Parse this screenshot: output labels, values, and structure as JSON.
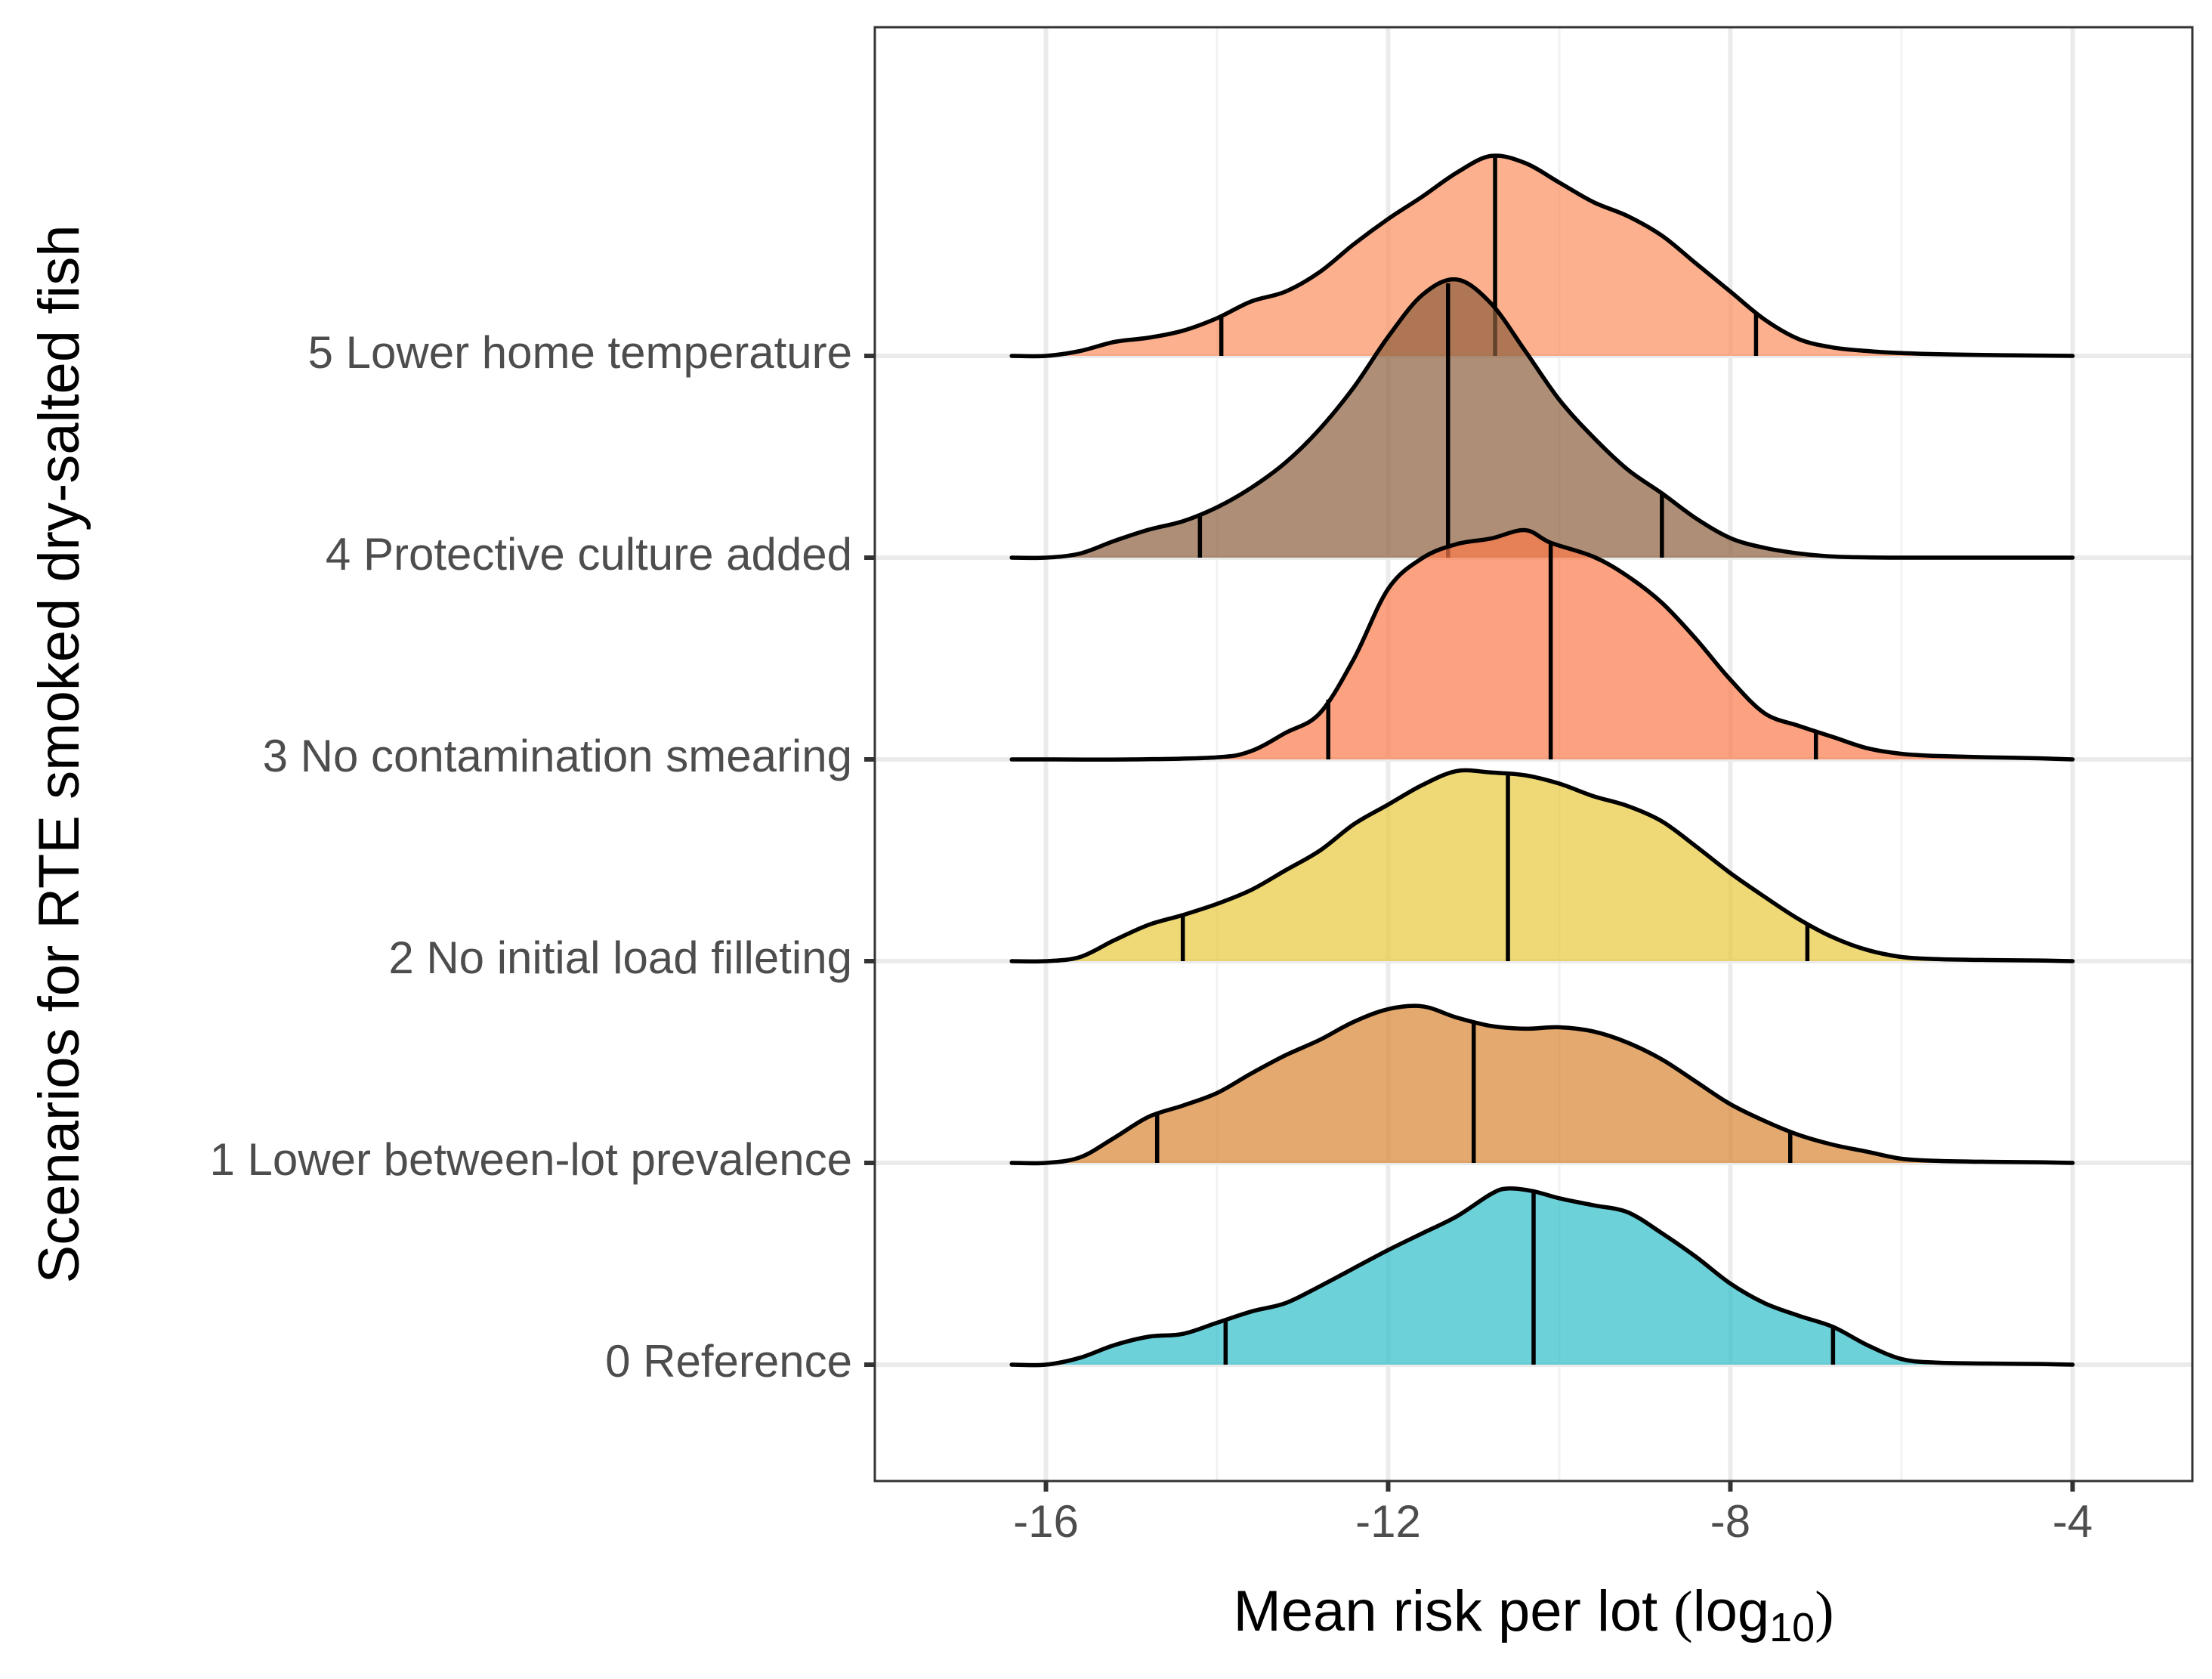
{
  "chart_data": {
    "type": "ridgeline",
    "xlabel": {
      "prefix": "Mean risk per lot ",
      "open": "(",
      "func": "log",
      "sub": "10",
      "close": ")"
    },
    "ylabel": "Scenarios for RTE smoked dry-salted fish",
    "xlim": [
      -18,
      -2.6
    ],
    "x_ticks": [
      -16,
      -12,
      -8,
      -4
    ],
    "x_tick_labels": [
      "-16",
      "-12",
      "-8",
      "-4"
    ],
    "x_minor_ticks": [
      -18,
      -14,
      -10,
      -6
    ],
    "x_density_range": [
      -16.4,
      -4
    ],
    "grid": true,
    "series": [
      {
        "name": "0 Reference",
        "color": "#2EBEC7",
        "quantiles": [
          -13.9,
          -10.3,
          -6.8
        ],
        "density": [
          [
            -16.4,
            0.0
          ],
          [
            -16.0,
            0.0
          ],
          [
            -15.6,
            0.05
          ],
          [
            -15.2,
            0.14
          ],
          [
            -14.8,
            0.2
          ],
          [
            -14.4,
            0.22
          ],
          [
            -14.0,
            0.3
          ],
          [
            -13.6,
            0.38
          ],
          [
            -13.2,
            0.44
          ],
          [
            -12.8,
            0.56
          ],
          [
            -12.4,
            0.69
          ],
          [
            -12.0,
            0.82
          ],
          [
            -11.6,
            0.94
          ],
          [
            -11.2,
            1.06
          ],
          [
            -10.8,
            1.22
          ],
          [
            -10.6,
            1.26
          ],
          [
            -10.3,
            1.24
          ],
          [
            -10.0,
            1.19
          ],
          [
            -9.6,
            1.14
          ],
          [
            -9.2,
            1.09
          ],
          [
            -8.8,
            0.94
          ],
          [
            -8.4,
            0.77
          ],
          [
            -8.0,
            0.58
          ],
          [
            -7.6,
            0.44
          ],
          [
            -7.2,
            0.35
          ],
          [
            -6.8,
            0.27
          ],
          [
            -6.4,
            0.14
          ],
          [
            -6.0,
            0.04
          ],
          [
            -5.6,
            0.015
          ],
          [
            -5.0,
            0.008
          ],
          [
            -4.4,
            0.005
          ],
          [
            -4.0,
            0.0
          ]
        ]
      },
      {
        "name": "1 Lower between-lot prevalence",
        "color": "#D98530",
        "quantiles": [
          -14.7,
          -11.0,
          -7.3
        ],
        "density": [
          [
            -16.4,
            0.0
          ],
          [
            -16.0,
            0.0
          ],
          [
            -15.6,
            0.04
          ],
          [
            -15.2,
            0.18
          ],
          [
            -14.8,
            0.33
          ],
          [
            -14.4,
            0.41
          ],
          [
            -14.0,
            0.5
          ],
          [
            -13.6,
            0.64
          ],
          [
            -13.2,
            0.77
          ],
          [
            -12.8,
            0.88
          ],
          [
            -12.4,
            1.01
          ],
          [
            -12.0,
            1.1
          ],
          [
            -11.6,
            1.12
          ],
          [
            -11.2,
            1.04
          ],
          [
            -10.8,
            0.98
          ],
          [
            -10.4,
            0.96
          ],
          [
            -10.0,
            0.97
          ],
          [
            -9.6,
            0.94
          ],
          [
            -9.2,
            0.86
          ],
          [
            -8.8,
            0.74
          ],
          [
            -8.4,
            0.58
          ],
          [
            -8.0,
            0.42
          ],
          [
            -7.6,
            0.3
          ],
          [
            -7.2,
            0.2
          ],
          [
            -6.8,
            0.13
          ],
          [
            -6.4,
            0.08
          ],
          [
            -6.0,
            0.03
          ],
          [
            -5.6,
            0.015
          ],
          [
            -5.0,
            0.008
          ],
          [
            -4.4,
            0.005
          ],
          [
            -4.0,
            0.0
          ]
        ]
      },
      {
        "name": "2 No initial load filleting",
        "color": "#E8C93C",
        "quantiles": [
          -14.4,
          -10.6,
          -7.1
        ],
        "density": [
          [
            -16.4,
            0.0
          ],
          [
            -16.0,
            0.0
          ],
          [
            -15.6,
            0.03
          ],
          [
            -15.2,
            0.15
          ],
          [
            -14.8,
            0.26
          ],
          [
            -14.4,
            0.33
          ],
          [
            -14.0,
            0.41
          ],
          [
            -13.6,
            0.51
          ],
          [
            -13.2,
            0.65
          ],
          [
            -12.8,
            0.79
          ],
          [
            -12.4,
            0.98
          ],
          [
            -12.0,
            1.12
          ],
          [
            -11.6,
            1.26
          ],
          [
            -11.2,
            1.36
          ],
          [
            -10.8,
            1.35
          ],
          [
            -10.4,
            1.33
          ],
          [
            -10.0,
            1.27
          ],
          [
            -9.6,
            1.18
          ],
          [
            -9.2,
            1.11
          ],
          [
            -8.8,
            1.0
          ],
          [
            -8.4,
            0.82
          ],
          [
            -8.0,
            0.63
          ],
          [
            -7.6,
            0.46
          ],
          [
            -7.2,
            0.3
          ],
          [
            -6.8,
            0.17
          ],
          [
            -6.4,
            0.08
          ],
          [
            -6.0,
            0.03
          ],
          [
            -5.6,
            0.015
          ],
          [
            -5.0,
            0.008
          ],
          [
            -4.4,
            0.005
          ],
          [
            -4.0,
            0.0
          ]
        ]
      },
      {
        "name": "3 No contamination smearing",
        "color": "#FC7A4A",
        "quantiles": [
          -12.7,
          -10.1,
          -7.0
        ],
        "density": [
          [
            -16.4,
            0.0
          ],
          [
            -16.0,
            0.0
          ],
          [
            -15.0,
            0.0
          ],
          [
            -14.0,
            0.015
          ],
          [
            -13.6,
            0.06
          ],
          [
            -13.2,
            0.19
          ],
          [
            -12.8,
            0.33
          ],
          [
            -12.4,
            0.72
          ],
          [
            -12.0,
            1.22
          ],
          [
            -11.6,
            1.44
          ],
          [
            -11.2,
            1.54
          ],
          [
            -10.8,
            1.58
          ],
          [
            -10.4,
            1.64
          ],
          [
            -10.1,
            1.55
          ],
          [
            -9.6,
            1.45
          ],
          [
            -9.2,
            1.31
          ],
          [
            -8.8,
            1.12
          ],
          [
            -8.4,
            0.86
          ],
          [
            -8.0,
            0.57
          ],
          [
            -7.6,
            0.33
          ],
          [
            -7.2,
            0.24
          ],
          [
            -6.8,
            0.16
          ],
          [
            -6.4,
            0.08
          ],
          [
            -6.0,
            0.04
          ],
          [
            -5.6,
            0.025
          ],
          [
            -5.0,
            0.015
          ],
          [
            -4.4,
            0.008
          ],
          [
            -4.0,
            0.0
          ]
        ]
      },
      {
        "name": "4 Protective culture added",
        "color": "#8B5E3C",
        "quantiles": [
          -14.2,
          -11.3,
          -8.8
        ],
        "density": [
          [
            -16.4,
            0.0
          ],
          [
            -16.0,
            0.0
          ],
          [
            -15.6,
            0.03
          ],
          [
            -15.2,
            0.12
          ],
          [
            -14.8,
            0.2
          ],
          [
            -14.4,
            0.26
          ],
          [
            -14.0,
            0.36
          ],
          [
            -13.6,
            0.5
          ],
          [
            -13.2,
            0.68
          ],
          [
            -12.8,
            0.92
          ],
          [
            -12.4,
            1.22
          ],
          [
            -12.0,
            1.58
          ],
          [
            -11.6,
            1.88
          ],
          [
            -11.2,
            1.99
          ],
          [
            -10.8,
            1.82
          ],
          [
            -10.4,
            1.48
          ],
          [
            -10.0,
            1.13
          ],
          [
            -9.6,
            0.86
          ],
          [
            -9.2,
            0.63
          ],
          [
            -8.8,
            0.46
          ],
          [
            -8.4,
            0.28
          ],
          [
            -8.0,
            0.14
          ],
          [
            -7.6,
            0.07
          ],
          [
            -7.2,
            0.03
          ],
          [
            -6.8,
            0.008
          ],
          [
            -6.4,
            0.002
          ],
          [
            -6.0,
            0.0
          ],
          [
            -5.0,
            0.0
          ],
          [
            -4.0,
            0.0
          ]
        ]
      },
      {
        "name": "5 Lower home temperature",
        "color": "#FC8F5E",
        "quantiles": [
          -13.95,
          -10.75,
          -7.7
        ],
        "density": [
          [
            -16.4,
            0.0
          ],
          [
            -16.0,
            0.0
          ],
          [
            -15.6,
            0.035
          ],
          [
            -15.2,
            0.1
          ],
          [
            -14.8,
            0.13
          ],
          [
            -14.4,
            0.18
          ],
          [
            -14.0,
            0.27
          ],
          [
            -13.6,
            0.39
          ],
          [
            -13.2,
            0.46
          ],
          [
            -12.8,
            0.6
          ],
          [
            -12.4,
            0.8
          ],
          [
            -12.0,
            0.98
          ],
          [
            -11.6,
            1.14
          ],
          [
            -11.2,
            1.31
          ],
          [
            -10.8,
            1.43
          ],
          [
            -10.4,
            1.38
          ],
          [
            -10.0,
            1.24
          ],
          [
            -9.6,
            1.1
          ],
          [
            -9.2,
            1.0
          ],
          [
            -8.8,
            0.86
          ],
          [
            -8.4,
            0.66
          ],
          [
            -8.0,
            0.46
          ],
          [
            -7.6,
            0.26
          ],
          [
            -7.2,
            0.12
          ],
          [
            -6.8,
            0.06
          ],
          [
            -6.4,
            0.035
          ],
          [
            -6.0,
            0.02
          ],
          [
            -5.4,
            0.01
          ],
          [
            -4.8,
            0.005
          ],
          [
            -4.0,
            0.0
          ]
        ]
      }
    ]
  }
}
